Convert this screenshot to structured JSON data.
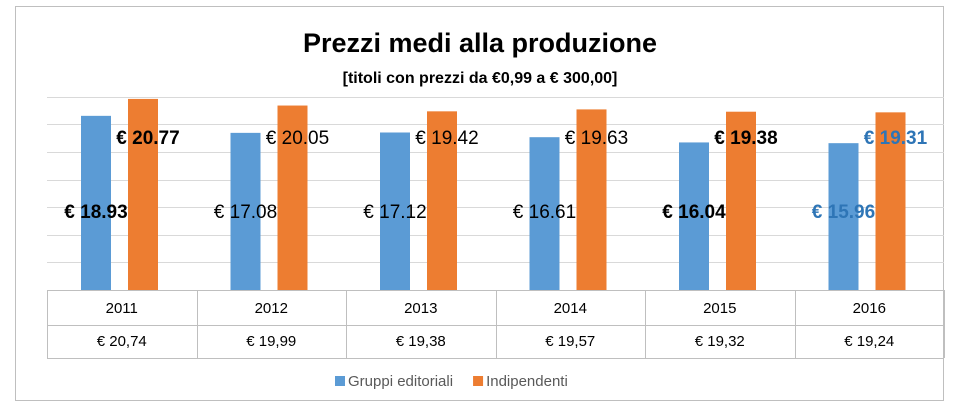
{
  "chart_data": {
    "type": "bar",
    "title": "Prezzi medi alla produzione",
    "subtitle": "[titoli con prezzi da €0,99 a € 300,00]",
    "categories": [
      "2011",
      "2012",
      "2013",
      "2014",
      "2015",
      "2016"
    ],
    "series": [
      {
        "name": "Gruppi editoriali",
        "color": "#5b9bd5",
        "values": [
          18.93,
          17.08,
          17.12,
          16.61,
          16.04,
          15.96
        ],
        "value_labels": [
          "€ 18.93",
          "€ 17.08",
          "€ 17.12",
          "€ 16.61",
          "€ 16.04",
          "€ 15.96"
        ],
        "label_bold": [
          true,
          false,
          false,
          false,
          true,
          true
        ],
        "label_colors": [
          "#000000",
          "#000000",
          "#000000",
          "#000000",
          "#000000",
          "#2e75b6"
        ]
      },
      {
        "name": "Indipendenti",
        "color": "#ed7d31",
        "values": [
          20.77,
          20.05,
          19.42,
          19.63,
          19.38,
          19.31
        ],
        "value_labels": [
          "€ 20.77",
          "€ 20.05",
          "€ 19.42",
          "€ 19.63",
          "€ 19.38",
          "€ 19.31"
        ],
        "label_bold": [
          true,
          false,
          false,
          false,
          true,
          true
        ],
        "label_colors": [
          "#000000",
          "#000000",
          "#000000",
          "#000000",
          "#000000",
          "#2e75b6"
        ]
      }
    ],
    "table_row": [
      "€ 20,74",
      "€ 19,99",
      "€ 19,38",
      "€ 19,57",
      "€ 19,32",
      "€ 19,24"
    ],
    "ylim": [
      0,
      24
    ],
    "yticks": [
      0,
      3,
      6,
      9,
      12,
      15,
      18,
      21
    ],
    "grid": true,
    "legend": "bottom"
  }
}
